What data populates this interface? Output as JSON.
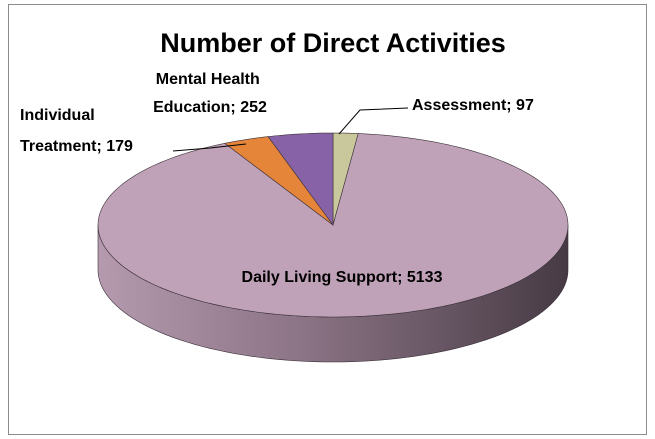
{
  "chart_data": {
    "type": "pie",
    "title": "Number of Direct Activities",
    "values": [
      97,
      5133,
      179,
      252
    ],
    "value_labels": [
      "Assessment; 97",
      "Daily Living Support; 5133",
      "Individual Treatment; 179",
      "Mental Health Education; 252"
    ],
    "colors": [
      "#c9c89c",
      "#c0a2b8",
      "#e5853a",
      "#8862a6"
    ]
  }
}
